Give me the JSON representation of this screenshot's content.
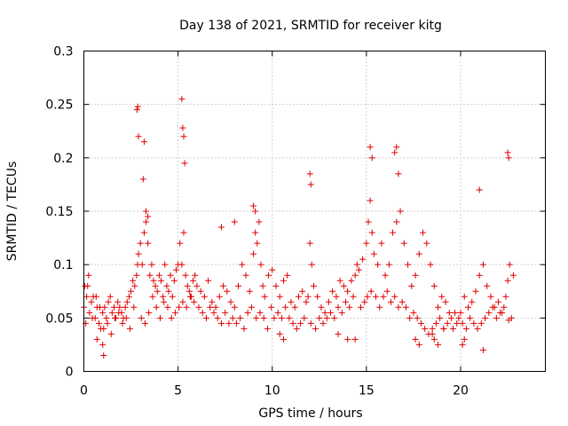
{
  "chart_data": {
    "type": "scatter",
    "title": "Day 138 of 2021, SRMTID for receiver kitg",
    "xlabel": "GPS time / hours",
    "ylabel": "SRMTID / TECUs",
    "xlim": [
      0,
      24.5
    ],
    "ylim": [
      0,
      0.3
    ],
    "x_ticks": [
      0,
      5,
      10,
      15,
      20
    ],
    "x_tick_labels": [
      "0",
      "5",
      "10",
      "15",
      "20"
    ],
    "y_ticks": [
      0,
      0.05,
      0.1,
      0.15,
      0.2,
      0.25,
      0.3
    ],
    "y_tick_labels": [
      "0",
      "0.05",
      "0.1",
      "0.15",
      "0.2",
      "0.25",
      "0.3"
    ],
    "grid": true,
    "marker": "+",
    "color": "#e00000",
    "series": [
      {
        "name": "SRMTID",
        "x": [
          0.0,
          0.1,
          0.2,
          0.3,
          0.4,
          0.5,
          0.6,
          0.7,
          0.8,
          0.9,
          1.0,
          1.1,
          1.2,
          1.3,
          1.4,
          1.5,
          1.6,
          1.7,
          1.8,
          1.9,
          2.0,
          2.1,
          2.2,
          2.3,
          2.4,
          2.5,
          2.6,
          2.7,
          2.8,
          2.85,
          2.9,
          3.0,
          3.1,
          3.2,
          3.3,
          3.4,
          3.5,
          3.6,
          3.7,
          3.8,
          3.9,
          4.0,
          4.1,
          4.2,
          4.3,
          4.4,
          4.5,
          4.6,
          4.7,
          4.8,
          4.9,
          5.0,
          5.1,
          5.2,
          5.3,
          5.4,
          5.5,
          5.6,
          5.7,
          5.8,
          5.9,
          6.0,
          6.2,
          6.4,
          6.6,
          6.8,
          7.0,
          7.2,
          7.4,
          7.6,
          7.8,
          8.0,
          8.2,
          8.4,
          8.6,
          8.8,
          9.0,
          9.1,
          9.2,
          9.3,
          9.4,
          9.5,
          9.6,
          9.8,
          10.0,
          10.2,
          10.4,
          10.6,
          10.8,
          11.0,
          11.2,
          11.4,
          11.6,
          11.8,
          11.9,
          12.0,
          12.1,
          12.2,
          12.4,
          12.6,
          12.8,
          13.0,
          13.2,
          13.4,
          13.6,
          13.8,
          14.0,
          14.2,
          14.4,
          14.5,
          14.6,
          14.8,
          15.0,
          15.1,
          15.2,
          15.3,
          15.4,
          15.6,
          15.8,
          16.0,
          16.2,
          16.4,
          16.6,
          16.8,
          17.0,
          17.2,
          17.4,
          17.6,
          17.8,
          18.0,
          18.2,
          18.4,
          18.6,
          18.8,
          19.0,
          19.2,
          19.4,
          19.6,
          19.8,
          20.0,
          20.2,
          20.4,
          20.6,
          20.8,
          21.0,
          21.2,
          21.4,
          21.6,
          21.8,
          22.0,
          22.2,
          22.4,
          22.5,
          22.6,
          22.8,
          0.05,
          0.15,
          0.25,
          0.45,
          0.65,
          0.85,
          1.05,
          1.25,
          1.45,
          1.65,
          1.85,
          2.05,
          2.25,
          2.45,
          2.65,
          3.05,
          3.25,
          3.45,
          3.65,
          3.85,
          4.05,
          4.25,
          4.45,
          4.65,
          4.85,
          5.05,
          5.25,
          5.45,
          5.65,
          5.85,
          6.1,
          6.3,
          6.5,
          6.7,
          6.9,
          7.1,
          7.3,
          7.5,
          7.7,
          7.9,
          8.1,
          8.3,
          8.5,
          8.7,
          8.9,
          9.15,
          9.35,
          9.55,
          9.75,
          9.95,
          10.1,
          10.3,
          10.5,
          10.7,
          10.9,
          11.1,
          11.3,
          11.5,
          11.7,
          12.05,
          12.3,
          12.5,
          12.7,
          12.9,
          13.1,
          13.3,
          13.5,
          13.7,
          13.9,
          14.1,
          14.3,
          14.7,
          14.9,
          15.05,
          15.25,
          15.5,
          15.7,
          15.9,
          16.1,
          16.3,
          16.5,
          16.7,
          16.9,
          17.1,
          17.3,
          17.5,
          17.7,
          17.9,
          18.1,
          18.3,
          18.5,
          18.7,
          18.9,
          19.1,
          19.3,
          19.5,
          19.7,
          19.9,
          20.1,
          20.3,
          20.5,
          20.7,
          20.9,
          21.1,
          21.3,
          21.5,
          21.7,
          21.9,
          22.1,
          22.3,
          22.55,
          22.7,
          2.82,
          2.86,
          2.9,
          3.2,
          3.15,
          5.2,
          5.25,
          5.3,
          5.35,
          3.3,
          3.4,
          12.0,
          12.05,
          15.2,
          15.3,
          16.5,
          16.6,
          16.7,
          21.0,
          22.5,
          22.55,
          9.0,
          9.1,
          8.0,
          7.3,
          18.6,
          18.8,
          18.5,
          19.1,
          1.0,
          1.05,
          0.7,
          20.1,
          20.2,
          21.2,
          17.6,
          17.8,
          10.4,
          10.6,
          13.5,
          14.0,
          14.4
        ],
        "y": [
          0.06,
          0.045,
          0.08,
          0.055,
          0.065,
          0.07,
          0.05,
          0.06,
          0.045,
          0.04,
          0.055,
          0.06,
          0.05,
          0.065,
          0.07,
          0.055,
          0.06,
          0.05,
          0.065,
          0.06,
          0.055,
          0.05,
          0.06,
          0.065,
          0.07,
          0.075,
          0.085,
          0.08,
          0.09,
          0.1,
          0.11,
          0.12,
          0.1,
          0.13,
          0.14,
          0.12,
          0.09,
          0.1,
          0.085,
          0.08,
          0.075,
          0.09,
          0.085,
          0.07,
          0.1,
          0.08,
          0.075,
          0.09,
          0.07,
          0.085,
          0.095,
          0.1,
          0.12,
          0.1,
          0.13,
          0.09,
          0.08,
          0.075,
          0.07,
          0.085,
          0.09,
          0.08,
          0.075,
          0.07,
          0.085,
          0.065,
          0.06,
          0.07,
          0.08,
          0.075,
          0.065,
          0.06,
          0.08,
          0.1,
          0.09,
          0.075,
          0.11,
          0.13,
          0.12,
          0.14,
          0.1,
          0.08,
          0.07,
          0.09,
          0.095,
          0.08,
          0.07,
          0.085,
          0.09,
          0.065,
          0.06,
          0.07,
          0.075,
          0.065,
          0.07,
          0.12,
          0.1,
          0.08,
          0.07,
          0.06,
          0.055,
          0.065,
          0.075,
          0.07,
          0.085,
          0.08,
          0.075,
          0.085,
          0.09,
          0.1,
          0.095,
          0.105,
          0.12,
          0.14,
          0.16,
          0.13,
          0.11,
          0.1,
          0.12,
          0.09,
          0.1,
          0.13,
          0.14,
          0.15,
          0.12,
          0.1,
          0.08,
          0.09,
          0.11,
          0.13,
          0.12,
          0.1,
          0.08,
          0.06,
          0.07,
          0.065,
          0.055,
          0.04,
          0.045,
          0.055,
          0.07,
          0.06,
          0.065,
          0.075,
          0.09,
          0.1,
          0.08,
          0.07,
          0.06,
          0.065,
          0.055,
          0.07,
          0.085,
          0.1,
          0.09,
          0.08,
          0.07,
          0.09,
          0.05,
          0.07,
          0.06,
          0.04,
          0.045,
          0.035,
          0.05,
          0.055,
          0.045,
          0.05,
          0.04,
          0.06,
          0.05,
          0.045,
          0.055,
          0.07,
          0.06,
          0.05,
          0.065,
          0.06,
          0.05,
          0.055,
          0.06,
          0.065,
          0.06,
          0.07,
          0.065,
          0.06,
          0.055,
          0.05,
          0.06,
          0.055,
          0.05,
          0.045,
          0.055,
          0.045,
          0.05,
          0.045,
          0.05,
          0.04,
          0.055,
          0.06,
          0.05,
          0.055,
          0.05,
          0.04,
          0.06,
          0.05,
          0.055,
          0.05,
          0.06,
          0.05,
          0.045,
          0.04,
          0.045,
          0.05,
          0.045,
          0.04,
          0.05,
          0.045,
          0.05,
          0.055,
          0.05,
          0.06,
          0.055,
          0.065,
          0.06,
          0.07,
          0.06,
          0.065,
          0.07,
          0.075,
          0.07,
          0.06,
          0.07,
          0.075,
          0.065,
          0.07,
          0.06,
          0.065,
          0.06,
          0.05,
          0.055,
          0.05,
          0.045,
          0.04,
          0.035,
          0.04,
          0.045,
          0.05,
          0.04,
          0.045,
          0.05,
          0.055,
          0.05,
          0.045,
          0.04,
          0.05,
          0.045,
          0.04,
          0.045,
          0.05,
          0.055,
          0.06,
          0.05,
          0.055,
          0.06,
          0.048,
          0.05,
          0.245,
          0.248,
          0.22,
          0.215,
          0.18,
          0.255,
          0.228,
          0.22,
          0.195,
          0.15,
          0.145,
          0.185,
          0.175,
          0.21,
          0.2,
          0.205,
          0.21,
          0.185,
          0.17,
          0.205,
          0.2,
          0.155,
          0.15,
          0.14,
          0.135,
          0.03,
          0.025,
          0.035,
          0.04,
          0.025,
          0.015,
          0.03,
          0.025,
          0.03,
          0.02,
          0.03,
          0.025,
          0.035,
          0.03,
          0.035,
          0.03,
          0.03
        ]
      }
    ]
  }
}
